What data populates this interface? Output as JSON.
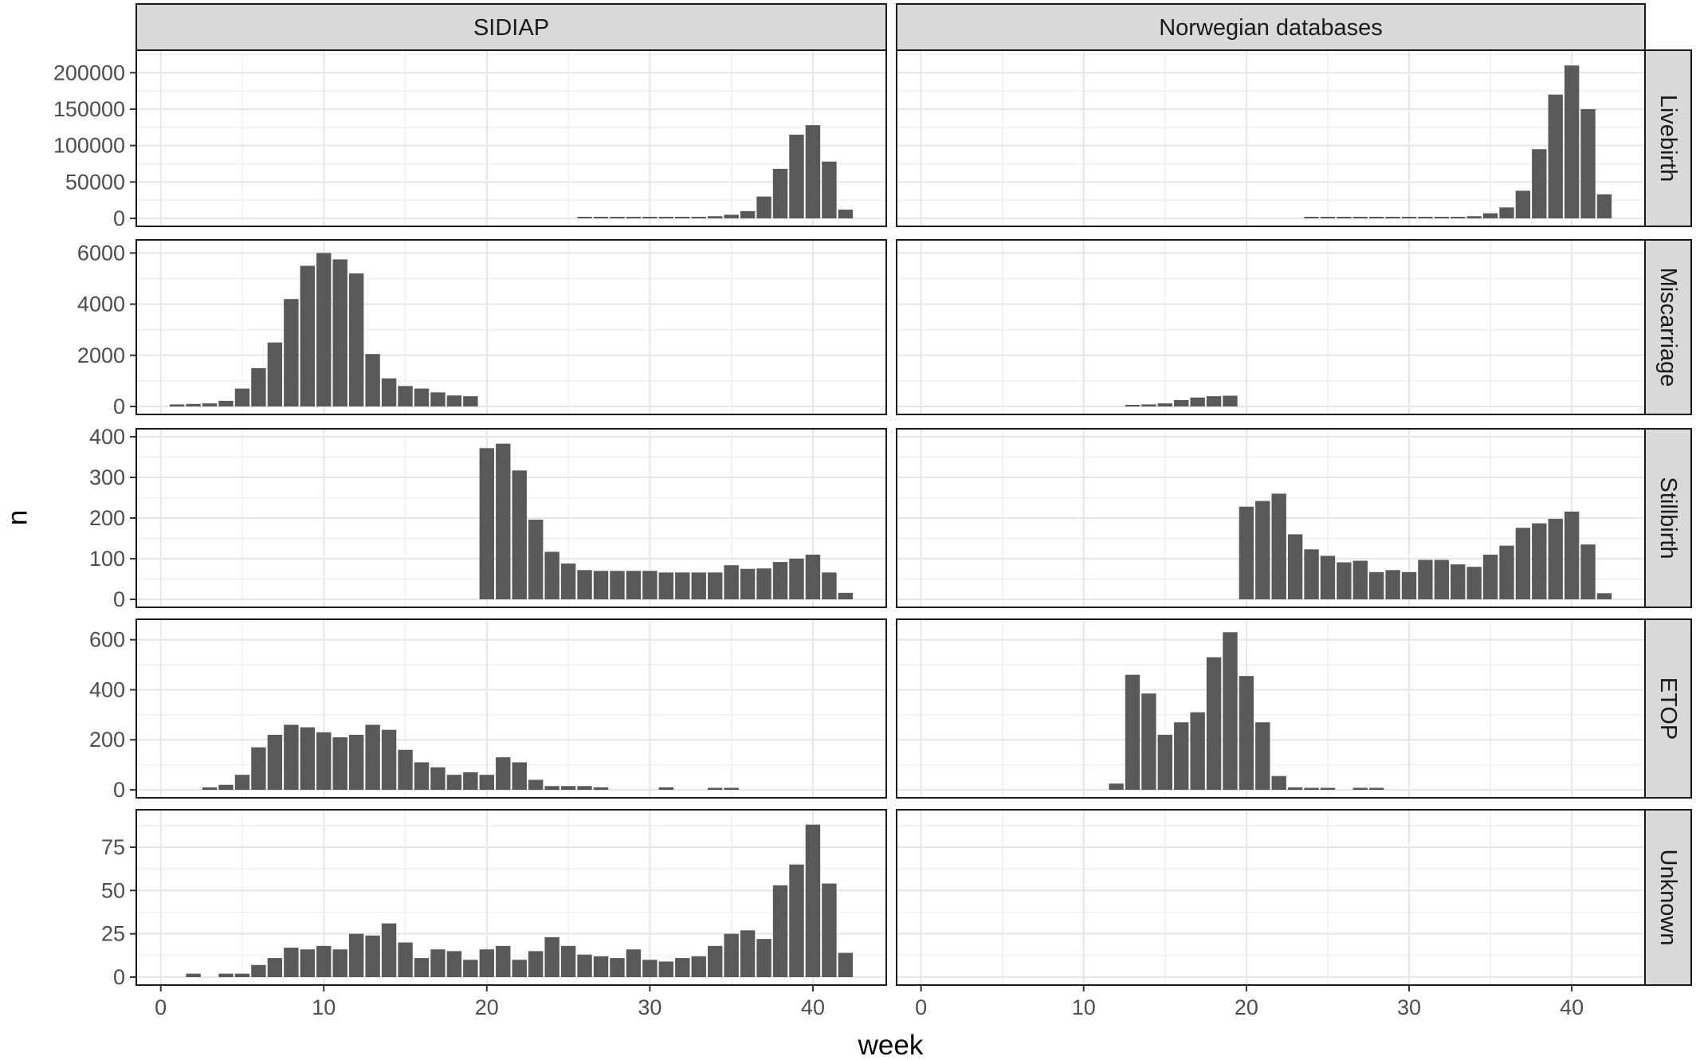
{
  "chart_data": {
    "type": "bar",
    "title": "",
    "xlabel": "week",
    "ylabel": "n",
    "xlim": [
      -1.5,
      44.5
    ],
    "x_ticks": [
      0,
      10,
      20,
      30,
      40
    ],
    "grid": true,
    "columns": [
      "SIDIAP",
      "Norwegian databases"
    ],
    "rows": [
      {
        "name": "Livebirth",
        "ylim": [
          0,
          220000
        ],
        "ticks": [
          0,
          50000,
          100000,
          150000,
          200000
        ],
        "tick_labels": [
          "0",
          "50000",
          "100000",
          "150000",
          "200000"
        ]
      },
      {
        "name": "Miscarriage",
        "ylim": [
          0,
          6200
        ],
        "ticks": [
          0,
          2000,
          4000,
          6000
        ],
        "tick_labels": [
          "0",
          "2000",
          "4000",
          "6000"
        ]
      },
      {
        "name": "Stillbirth",
        "ylim": [
          0,
          400
        ],
        "ticks": [
          0,
          100,
          200,
          300,
          400
        ],
        "tick_labels": [
          "0",
          "100",
          "200",
          "300",
          "400"
        ]
      },
      {
        "name": "ETOP",
        "ylim": [
          0,
          650
        ],
        "ticks": [
          0,
          200,
          400,
          600
        ],
        "tick_labels": [
          "0",
          "200",
          "400",
          "600"
        ]
      },
      {
        "name": "Unknown",
        "ylim": [
          0,
          92
        ],
        "ticks": [
          0,
          25,
          50,
          75
        ],
        "tick_labels": [
          "0",
          "25",
          "50",
          "75"
        ]
      }
    ],
    "panels": [
      {
        "column": "SIDIAP",
        "row": "Livebirth",
        "x": [
          26,
          27,
          28,
          29,
          30,
          31,
          32,
          33,
          34,
          35,
          36,
          37,
          38,
          39,
          40,
          41,
          42
        ],
        "y": [
          600,
          800,
          900,
          1000,
          1100,
          1300,
          1500,
          2000,
          3000,
          5000,
          10000,
          30000,
          68000,
          115000,
          128000,
          78000,
          12000
        ]
      },
      {
        "column": "Norwegian databases",
        "row": "Livebirth",
        "x": [
          24,
          25,
          26,
          27,
          28,
          29,
          30,
          31,
          32,
          33,
          34,
          35,
          36,
          37,
          38,
          39,
          40,
          41,
          42
        ],
        "y": [
          500,
          600,
          700,
          800,
          900,
          1000,
          1100,
          1300,
          1500,
          2000,
          3000,
          7000,
          15000,
          38000,
          95000,
          170000,
          210000,
          150000,
          33000
        ]
      },
      {
        "column": "SIDIAP",
        "row": "Miscarriage",
        "x": [
          1,
          2,
          3,
          4,
          5,
          6,
          7,
          8,
          9,
          10,
          11,
          12,
          13,
          14,
          15,
          16,
          17,
          18,
          19
        ],
        "y": [
          80,
          100,
          120,
          220,
          700,
          1500,
          2500,
          4200,
          5500,
          6000,
          5750,
          5200,
          2050,
          1100,
          800,
          700,
          550,
          430,
          400
        ]
      },
      {
        "column": "Norwegian databases",
        "row": "Miscarriage",
        "x": [
          13,
          14,
          15,
          16,
          17,
          18,
          19
        ],
        "y": [
          60,
          80,
          120,
          250,
          350,
          400,
          420
        ]
      },
      {
        "column": "SIDIAP",
        "row": "Stillbirth",
        "x": [
          20,
          21,
          22,
          23,
          24,
          25,
          26,
          27,
          28,
          29,
          30,
          31,
          32,
          33,
          34,
          35,
          36,
          37,
          38,
          39,
          40,
          41,
          42
        ],
        "y": [
          372,
          383,
          317,
          196,
          117,
          88,
          72,
          70,
          70,
          70,
          70,
          66,
          66,
          66,
          66,
          84,
          75,
          76,
          92,
          100,
          110,
          66,
          16
        ]
      },
      {
        "column": "Norwegian databases",
        "row": "Stillbirth",
        "x": [
          20,
          21,
          22,
          23,
          24,
          25,
          26,
          27,
          28,
          29,
          30,
          31,
          32,
          33,
          34,
          35,
          36,
          37,
          38,
          39,
          40,
          41,
          42
        ],
        "y": [
          228,
          242,
          260,
          160,
          123,
          107,
          91,
          95,
          67,
          72,
          67,
          97,
          97,
          86,
          80,
          110,
          132,
          176,
          187,
          198,
          216,
          135,
          15
        ]
      },
      {
        "column": "SIDIAP",
        "row": "ETOP",
        "x": [
          3,
          4,
          5,
          6,
          7,
          8,
          9,
          10,
          11,
          12,
          13,
          14,
          15,
          16,
          17,
          18,
          19,
          20,
          21,
          22,
          23,
          24,
          25,
          26,
          27,
          31,
          34,
          35
        ],
        "y": [
          10,
          20,
          60,
          170,
          220,
          260,
          250,
          230,
          210,
          220,
          260,
          240,
          160,
          110,
          90,
          60,
          70,
          60,
          130,
          110,
          40,
          15,
          15,
          15,
          10,
          10,
          8,
          8
        ]
      },
      {
        "column": "Norwegian databases",
        "row": "ETOP",
        "x": [
          12,
          13,
          14,
          15,
          16,
          17,
          18,
          19,
          20,
          21,
          22,
          23,
          24,
          25,
          27,
          28
        ],
        "y": [
          25,
          460,
          385,
          220,
          270,
          310,
          530,
          630,
          455,
          270,
          55,
          10,
          8,
          8,
          8,
          8
        ]
      },
      {
        "column": "SIDIAP",
        "row": "Unknown",
        "x": [
          2,
          4,
          5,
          6,
          7,
          8,
          9,
          10,
          11,
          12,
          13,
          14,
          15,
          16,
          17,
          18,
          19,
          20,
          21,
          22,
          23,
          24,
          25,
          26,
          27,
          28,
          29,
          30,
          31,
          32,
          33,
          34,
          35,
          36,
          37,
          38,
          39,
          40,
          41,
          42
        ],
        "y": [
          2,
          2,
          2,
          7,
          11,
          17,
          16,
          18,
          16,
          25,
          24,
          31,
          20,
          11,
          16,
          15,
          10,
          16,
          18,
          10,
          15,
          23,
          18,
          13,
          12,
          11,
          16,
          10,
          9,
          11,
          12,
          18,
          25,
          27,
          22,
          53,
          65,
          88,
          54,
          14
        ]
      },
      {
        "column": "Norwegian databases",
        "row": "Unknown",
        "x": [],
        "y": []
      }
    ]
  }
}
